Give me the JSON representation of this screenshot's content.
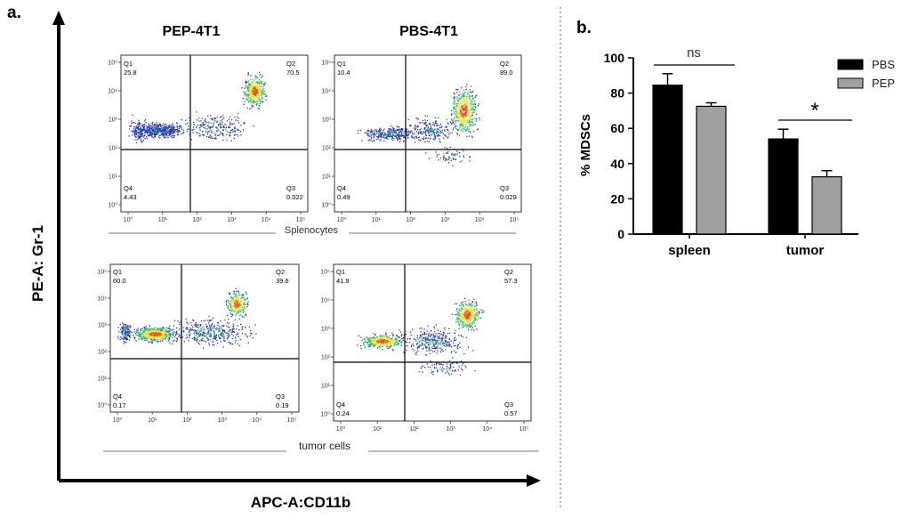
{
  "panel_a": {
    "letter": "a.",
    "y_axis_label": "PE-A: Gr-1",
    "x_axis_label": "APC-A:CD11b",
    "column_titles": [
      "PEP-4T1",
      "PBS-4T1"
    ],
    "row_labels": [
      "Splenocytes",
      "tumor cells"
    ],
    "tick_labels": [
      "10⁰",
      "10¹",
      "10²",
      "10³",
      "10⁴",
      "10⁵"
    ],
    "quadrant_names": [
      "Q1",
      "Q2",
      "Q3",
      "Q4"
    ],
    "plots": [
      {
        "column": "PEP-4T1",
        "sample": "Splenocytes",
        "q1": "25.8",
        "q2": "70.5",
        "q3": "0.022",
        "q4": "4.43"
      },
      {
        "column": "PBS-4T1",
        "sample": "Splenocytes",
        "q1": "10.4",
        "q2": "89.0",
        "q3": "0.029",
        "q4": "0.49"
      },
      {
        "column": "PEP-4T1",
        "sample": "tumor cells",
        "q1": "60.0",
        "q2": "39.6",
        "q3": "0.19",
        "q4": "0.17"
      },
      {
        "column": "PBS-4T1",
        "sample": "tumor cells",
        "q1": "41.9",
        "q2": "57.3",
        "q3": "0.57",
        "q4": "0.24"
      }
    ],
    "colors": {
      "low": "#2a36b8",
      "mid": "#2fbf6a",
      "high": "#f0e030",
      "peak": "#e8541e"
    }
  },
  "chart_data": {
    "type": "bar",
    "letter": "b.",
    "categories": [
      "spleen",
      "tumor"
    ],
    "series": [
      {
        "name": "PBS",
        "values": [
          84.5,
          54
        ],
        "errors": [
          6.5,
          5.5
        ],
        "color": "#000000"
      },
      {
        "name": "PEP",
        "values": [
          72.5,
          32.5
        ],
        "errors": [
          2,
          3.5
        ],
        "color": "#a0a0a0"
      }
    ],
    "ylabel": "% MDSCs",
    "ylim": [
      0,
      100
    ],
    "yticks": [
      0,
      20,
      40,
      60,
      80,
      100
    ],
    "significance": [
      "ns",
      "*"
    ],
    "legend_position": "top-right",
    "grid": false
  }
}
